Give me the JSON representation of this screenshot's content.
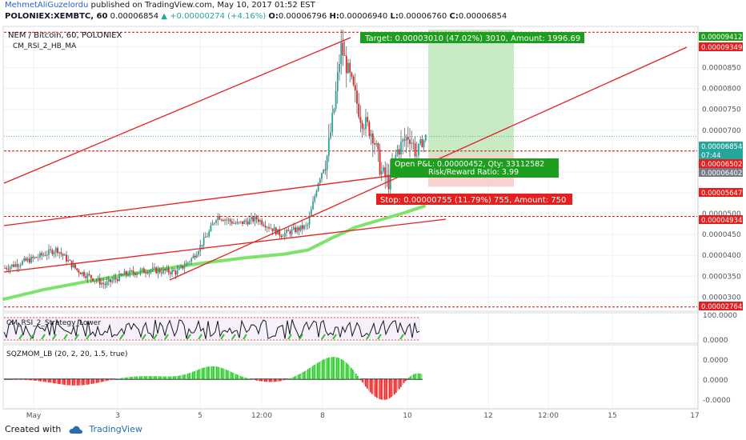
{
  "header": {
    "author": "MehmetAliGuzelordu",
    "published": "published on TradingView.com, May 10, 2017 01:52 EST",
    "symbol": "POLONIEX:XEMBTC, 60",
    "open_val": "0.00006854",
    "change": "+0.00000274 (+4.16%)",
    "o_label": "O:",
    "o_val": "0.00006796",
    "h_label": "H:",
    "h_val": "0.00006940",
    "l_label": "L:",
    "l_val": "0.00006760",
    "c_label": "C:",
    "c_val": "0.00006854"
  },
  "chart_title": "NEM / Bitcoin, 60, POLONIEX",
  "indicator_label": "CM_RSI_2_HB_MA",
  "target_label": "Target: 0.00003010 (47.02%) 3010, Amount: 1996.69",
  "open_pl_label": "Open P&L: 0.00000452, Qty: 33112582",
  "rr_label": "Risk/Reward Ratio: 3.99",
  "stop_label": "Stop: 0.00000755 (11.79%) 755, Amount: 750",
  "price_tags": [
    {
      "text": "0.00009412",
      "color": "#1e9e1e"
    },
    {
      "text": "0.00009349",
      "color": "#e61e1e"
    },
    {
      "text": "0.00006854",
      "color": "#26a69a"
    },
    {
      "text": "07:44",
      "color": "#26a69a"
    },
    {
      "text": "0.00006502",
      "color": "#e61e1e"
    },
    {
      "text": "0.00006402",
      "color": "#787b86"
    },
    {
      "text": "0.00005647",
      "color": "#e61e1e"
    },
    {
      "text": "0.00004934",
      "color": "#e61e1e"
    },
    {
      "text": "0.00002764",
      "color": "#e61e1e"
    }
  ],
  "rsi_label": "CM_RSI_2_Strategy_Lower",
  "rsi_ticks": [
    "100.0000",
    "0.0000"
  ],
  "mom_label": "SQZMOM_LB (20, 2, 20, 1.5, true)",
  "mom_ticks": [
    "0.0000",
    "0.0000",
    "-0.0000"
  ],
  "time_labels": [
    "May",
    "3",
    "5",
    "12:00",
    "8",
    "10",
    "12",
    "12:00",
    "15",
    "17"
  ],
  "footer": {
    "created": "Created with",
    "brand": "TradingView"
  },
  "colors": {
    "up": "#26a69a",
    "down": "#e61e1e",
    "ma": "#7ee36b",
    "reward": "#b6e3b0",
    "risk": "#f7c6c6",
    "level": "#e61e1e"
  },
  "chart_data": {
    "type": "candlestick",
    "symbol": "NEM / Bitcoin, 60, POLONIEX",
    "ylim": [
      2.7e-05,
      9.45e-05
    ],
    "y_ticks": [
      3e-05,
      3.5e-05,
      4e-05,
      4.5e-05,
      5e-05,
      5.5e-05,
      6e-05,
      6.5e-05,
      7e-05,
      7.5e-05,
      8e-05,
      8.5e-05,
      9e-05
    ],
    "y_tick_labels": [
      "0.0000300",
      "0.0000350",
      "0.0000400",
      "0.0000450",
      "0.0000500",
      "0.0000550",
      "0.0000600",
      "0.0000650",
      "0.0000700",
      "0.0000750",
      "0.0000800",
      "0.0000850",
      "0.0000900"
    ],
    "horizontal_levels": [
      9.349e-05,
      6.502e-05,
      4.934e-05,
      2.764e-05
    ],
    "last_price": 6.854e-05,
    "position": {
      "entry": 6.402e-05,
      "target": 9.412e-05,
      "stop": 5.647e-05
    },
    "price_path_anchors": [
      [
        0,
        3.7e-05
      ],
      [
        40,
        3.95e-05
      ],
      [
        65,
        4.15e-05
      ],
      [
        90,
        3.65e-05
      ],
      [
        110,
        3.45e-05
      ],
      [
        125,
        3.3e-05
      ],
      [
        150,
        3.55e-05
      ],
      [
        180,
        3.65e-05
      ],
      [
        215,
        3.6e-05
      ],
      [
        235,
        3.95e-05
      ],
      [
        255,
        4.55e-05
      ],
      [
        265,
        4.95e-05
      ],
      [
        290,
        4.75e-05
      ],
      [
        315,
        4.88e-05
      ],
      [
        345,
        4.5e-05
      ],
      [
        378,
        4.7e-05
      ],
      [
        392,
        5.8e-05
      ],
      [
        402,
        6.3e-05
      ],
      [
        412,
        7.6e-05
      ],
      [
        420,
        9e-05
      ],
      [
        432,
        8.2e-05
      ],
      [
        445,
        7.3e-05
      ],
      [
        460,
        6.9e-05
      ],
      [
        470,
        6e-05
      ],
      [
        480,
        5.75e-05
      ],
      [
        490,
        6.5e-05
      ],
      [
        505,
        6.9e-05
      ],
      [
        515,
        6.4e-05
      ],
      [
        527,
        6.9e-05
      ]
    ],
    "ma_path": [
      [
        0,
        2.95e-05
      ],
      [
        50,
        3.18e-05
      ],
      [
        100,
        3.36e-05
      ],
      [
        150,
        3.53e-05
      ],
      [
        200,
        3.68e-05
      ],
      [
        250,
        3.82e-05
      ],
      [
        300,
        3.94e-05
      ],
      [
        350,
        4.03e-05
      ],
      [
        380,
        4.13e-05
      ],
      [
        410,
        4.42e-05
      ],
      [
        440,
        4.68e-05
      ],
      [
        470,
        4.85e-05
      ],
      [
        500,
        5.02e-05
      ],
      [
        525,
        5.18e-05
      ]
    ]
  }
}
